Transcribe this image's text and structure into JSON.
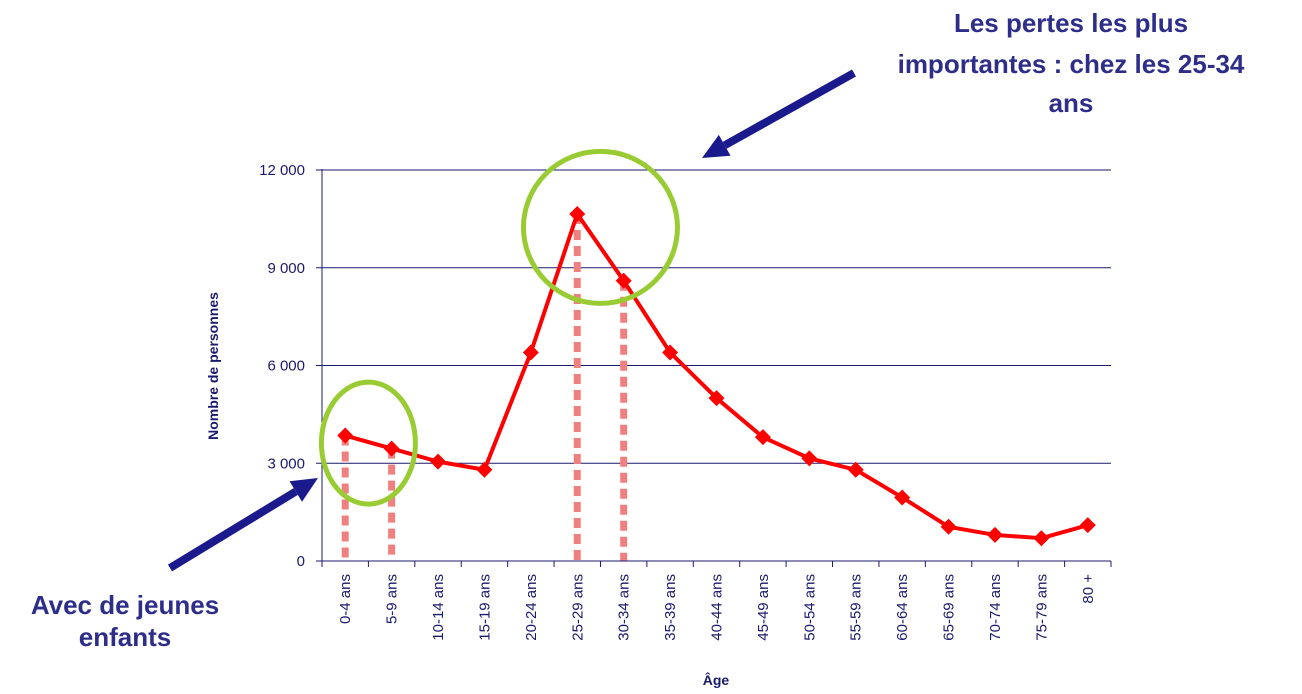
{
  "chart_data": {
    "type": "line",
    "categories": [
      "0-4 ans",
      "5-9 ans",
      "10-14 ans",
      "15-19 ans",
      "20-24 ans",
      "25-29 ans",
      "30-34 ans",
      "35-39 ans",
      "40-44 ans",
      "45-49 ans",
      "50-54 ans",
      "55-59 ans",
      "60-64 ans",
      "65-69 ans",
      "70-74 ans",
      "75-79 ans",
      "80 +"
    ],
    "values": [
      3850,
      3450,
      3050,
      2800,
      6400,
      10650,
      8600,
      6400,
      5000,
      3800,
      3150,
      2800,
      1950,
      1050,
      800,
      700,
      1100
    ],
    "highlighted_categories": [
      "0-4 ans",
      "5-9 ans",
      "25-29 ans",
      "30-34 ans"
    ],
    "title": "",
    "xlabel": "Âge",
    "ylabel": "Nombre de personnes",
    "ylim": [
      0,
      12000
    ],
    "yticks": [
      0,
      3000,
      6000,
      9000,
      12000
    ],
    "ytick_labels": [
      "0",
      "3 000",
      "6 000",
      "9 000",
      "12 000"
    ],
    "grid": true,
    "colors": {
      "line": "#ff0000",
      "drop_lines": "#f08080",
      "circles": "#99cc33",
      "arrows": "#1a1a8c",
      "annotation_text": "#2e2e8a",
      "axis": "#1a1a6e"
    },
    "annotations": {
      "top": [
        "Les pertes les plus",
        "importantes : chez les 25-34",
        "ans"
      ],
      "bottom": [
        "Avec de jeunes",
        "enfants"
      ]
    }
  }
}
